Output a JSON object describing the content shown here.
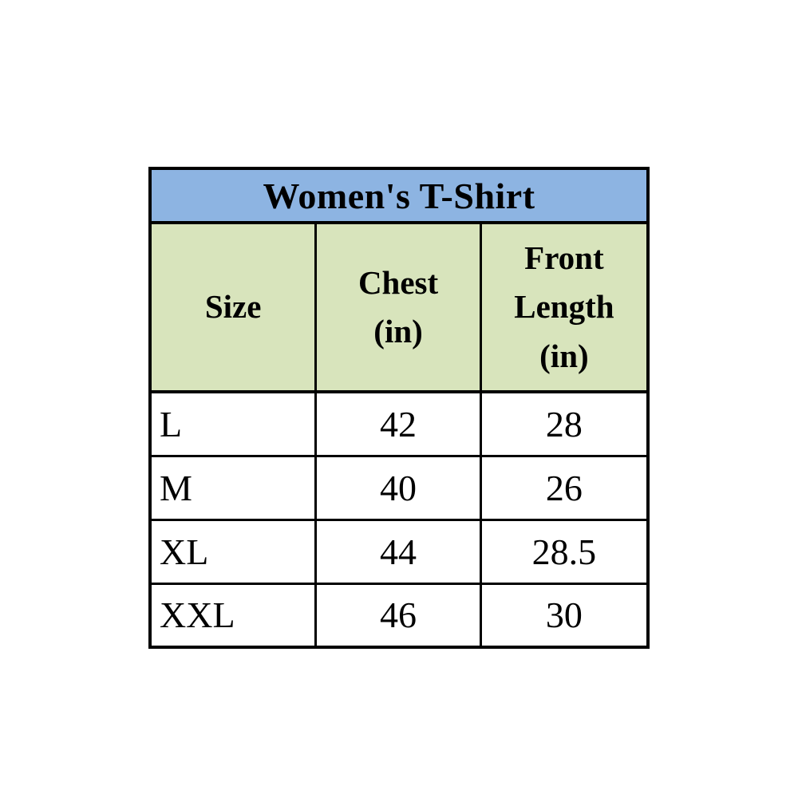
{
  "size_chart": {
    "title": "Women's T-Shirt",
    "header_lines": [
      [
        "Size"
      ],
      [
        "Chest",
        "(in)"
      ],
      [
        "Front",
        "Length",
        "(in)"
      ]
    ],
    "rows": [
      {
        "size": "L",
        "chest": "42",
        "front_length": "28"
      },
      {
        "size": "M",
        "chest": "40",
        "front_length": "26"
      },
      {
        "size": "XL",
        "chest": "44",
        "front_length": "28.5"
      },
      {
        "size": "XXL",
        "chest": "46",
        "front_length": "30"
      }
    ]
  },
  "colors": {
    "title_bg": "#8DB4E2",
    "header_bg": "#D8E4BC",
    "body_bg": "#FFFFFF",
    "border": "#000000",
    "text": "#000000"
  },
  "chart_data": {
    "type": "table",
    "title": "Women's T-Shirt",
    "columns": [
      "Size",
      "Chest (in)",
      "Front Length (in)"
    ],
    "rows": [
      [
        "L",
        42,
        28
      ],
      [
        "M",
        40,
        26
      ],
      [
        "XL",
        44,
        28.5
      ],
      [
        "XXL",
        46,
        30
      ]
    ]
  }
}
